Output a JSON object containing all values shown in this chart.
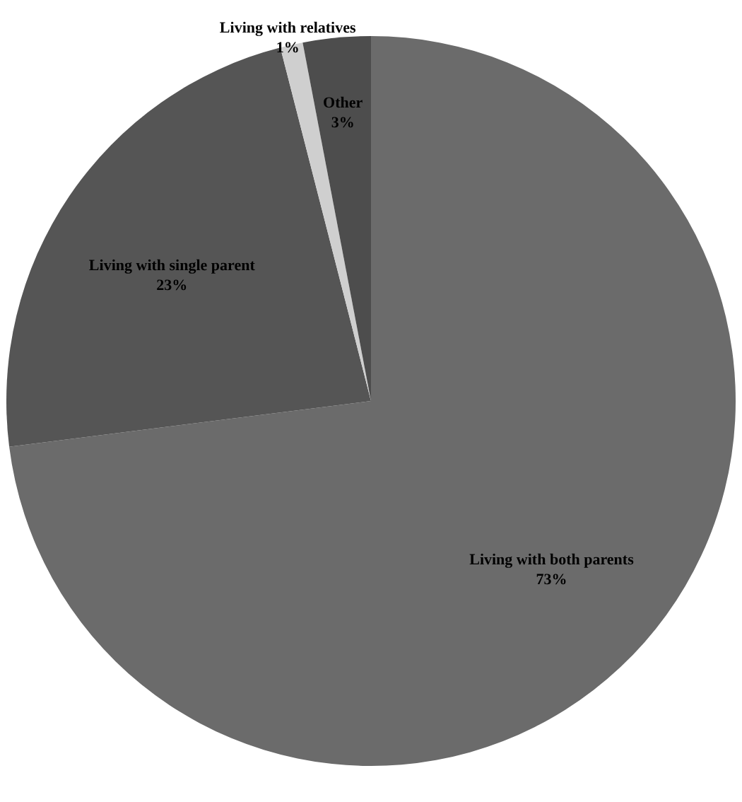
{
  "chart_data": {
    "type": "pie",
    "categories": [
      "Living with both parents",
      "Living with single parent",
      "Living with relatives",
      "Other"
    ],
    "values": [
      73,
      23,
      1,
      3
    ],
    "value_labels": [
      "73%",
      "23%",
      "1%",
      "3%"
    ],
    "colors": [
      "#6b6b6b",
      "#555555",
      "#cfcfcf",
      "#4d4d4d"
    ]
  }
}
